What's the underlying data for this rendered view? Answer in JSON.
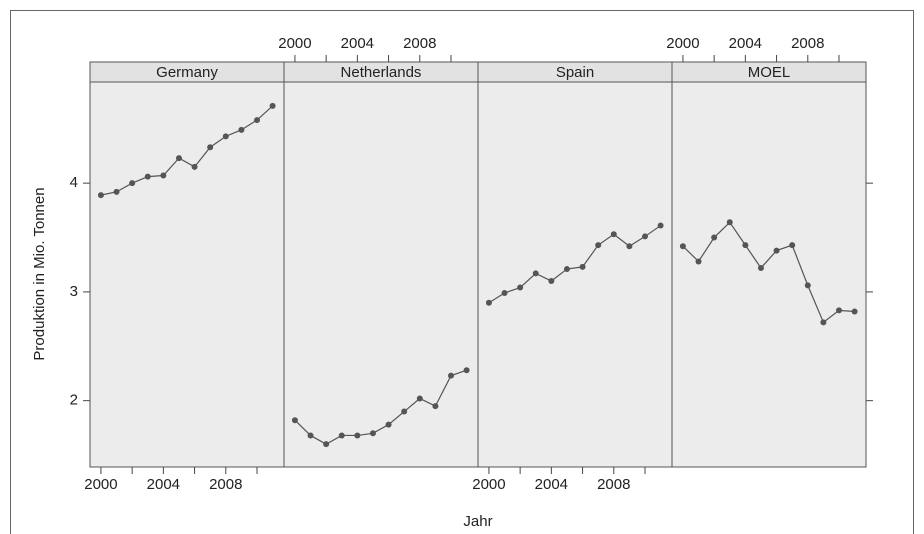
{
  "chart_data": {
    "type": "line",
    "layout": "panels",
    "x_label": "Jahr",
    "y_label": "Produktion in Mio. Tonnen",
    "x": [
      2000,
      2001,
      2002,
      2003,
      2004,
      2005,
      2006,
      2007,
      2008,
      2009,
      2010,
      2011
    ],
    "series": [
      {
        "name": "Germany",
        "color": "#555555",
        "values": [
          3.89,
          3.92,
          4.0,
          4.06,
          4.07,
          4.23,
          4.15,
          4.33,
          4.43,
          4.49,
          4.58,
          4.71
        ]
      },
      {
        "name": "Netherlands",
        "color": "#555555",
        "values": [
          1.82,
          1.68,
          1.6,
          1.68,
          1.68,
          1.7,
          1.78,
          1.9,
          2.02,
          1.95,
          2.23,
          2.28
        ]
      },
      {
        "name": "Spain",
        "color": "#555555",
        "values": [
          2.9,
          2.99,
          3.04,
          3.17,
          3.1,
          3.21,
          3.23,
          3.43,
          3.53,
          3.42,
          3.51,
          3.61
        ]
      },
      {
        "name": "MOEL",
        "color": "#555555",
        "values": [
          3.42,
          3.28,
          3.5,
          3.64,
          3.43,
          3.22,
          3.38,
          3.43,
          3.06,
          2.72,
          2.83,
          2.82
        ]
      }
    ],
    "xlim": [
      1999.3,
      2011.73
    ],
    "xticks": [
      2000,
      2004,
      2008
    ],
    "x_minor_ticks": [
      2002,
      2006,
      2010
    ],
    "ylim": [
      1.39,
      4.93
    ],
    "yticks": [
      2,
      3,
      4
    ]
  }
}
